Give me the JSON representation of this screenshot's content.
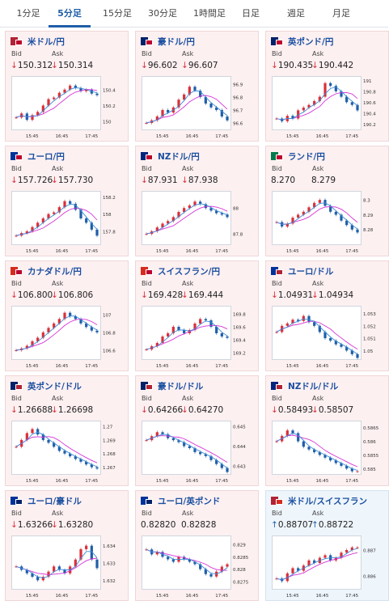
{
  "tabs": [
    {
      "label": "1分足"
    },
    {
      "label": "5分足",
      "active": true
    },
    {
      "label": "15分足"
    },
    {
      "label": "30分足"
    },
    {
      "label": "1時間足"
    },
    {
      "label": "日足"
    },
    {
      "label": "週足"
    },
    {
      "label": "月足"
    }
  ],
  "labels": {
    "bid": "Bid",
    "ask": "Ask"
  },
  "colors": {
    "up": "#d9303a",
    "down": "#1f5ea8",
    "ma_long": "#d633d6",
    "ma_short": "#3a8ad6",
    "link": "#1a4fa0"
  },
  "pairs": [
    {
      "name": "米ドル/円",
      "flag": "us-jp-flag",
      "dir": "down",
      "bid": "150.312",
      "ask": "150.314",
      "chart_data": {
        "type": "candlestick",
        "x_ticks": [
          "15:45",
          "16:45",
          "17:45"
        ],
        "y_ticks": [
          "150",
          "150.2",
          "150.4"
        ],
        "ylim": [
          149.9,
          150.55
        ],
        "series": [
          150.05,
          150.1,
          150.02,
          150.08,
          150.12,
          150.2,
          150.28,
          150.3,
          150.36,
          150.4,
          150.45,
          150.42,
          150.38,
          150.4,
          150.35,
          150.33
        ]
      }
    },
    {
      "name": "豪ドル/円",
      "flag": "au-jp-flag",
      "dir": "down",
      "bid": "96.602",
      "ask": "96.607",
      "chart_data": {
        "type": "candlestick",
        "x_ticks": [
          "15:45",
          "16:45",
          "17:45"
        ],
        "y_ticks": [
          "96.6",
          "96.7",
          "96.8",
          "96.9"
        ],
        "ylim": [
          96.55,
          96.95
        ],
        "series": [
          96.6,
          96.62,
          96.65,
          96.7,
          96.68,
          96.72,
          96.78,
          96.82,
          96.88,
          96.85,
          96.8,
          96.75,
          96.72,
          96.7,
          96.65,
          96.62
        ]
      }
    },
    {
      "name": "英ポンド/円",
      "flag": "gb-jp-flag",
      "dir": "down",
      "bid": "190.435",
      "ask": "190.442",
      "chart_data": {
        "type": "candlestick",
        "x_ticks": [
          "15:45",
          "16:45",
          "17:45"
        ],
        "y_ticks": [
          "190.2",
          "190.4",
          "190.6",
          "190.8",
          "191"
        ],
        "ylim": [
          190.1,
          191.05
        ],
        "series": [
          190.3,
          190.25,
          190.35,
          190.3,
          190.45,
          190.5,
          190.55,
          190.62,
          190.7,
          190.95,
          190.9,
          190.8,
          190.7,
          190.6,
          190.55,
          190.45
        ]
      }
    },
    {
      "name": "ユーロ/円",
      "flag": "eu-jp-flag",
      "dir": "down",
      "bid": "157.726",
      "ask": "157.730",
      "chart_data": {
        "type": "candlestick",
        "x_ticks": [
          "15:45",
          "16:45",
          "17:45"
        ],
        "y_ticks": [
          "157.8",
          "158",
          "158.2"
        ],
        "ylim": [
          157.65,
          158.25
        ],
        "series": [
          157.75,
          157.78,
          157.8,
          157.85,
          157.9,
          157.95,
          158.0,
          158.02,
          158.08,
          158.15,
          158.12,
          158.05,
          157.95,
          157.9,
          157.82,
          157.75
        ]
      }
    },
    {
      "name": "NZドル/円",
      "flag": "nz-jp-flag",
      "dir": "down",
      "bid": "87.931",
      "ask": "87.938",
      "chart_data": {
        "type": "candlestick",
        "x_ticks": [
          "15:45",
          "16:45",
          "17:45"
        ],
        "y_ticks": [
          "87.8",
          "88"
        ],
        "ylim": [
          87.72,
          88.12
        ],
        "series": [
          87.8,
          87.82,
          87.85,
          87.88,
          87.9,
          87.93,
          87.97,
          88.0,
          88.02,
          88.05,
          88.03,
          88.0,
          87.98,
          87.96,
          87.95,
          87.93
        ]
      }
    },
    {
      "name": "ランド/円",
      "flag": "za-jp-flag",
      "dir": "none",
      "bid": "8.270",
      "ask": "8.279",
      "chart_data": {
        "type": "candlestick",
        "x_ticks": [
          "15:45",
          "16:45",
          "17:45"
        ],
        "y_ticks": [
          "8.28",
          "8.29",
          "8.3"
        ],
        "ylim": [
          8.27,
          8.305
        ],
        "series": [
          8.285,
          8.282,
          8.284,
          8.288,
          8.29,
          8.292,
          8.295,
          8.298,
          8.3,
          8.296,
          8.292,
          8.29,
          8.286,
          8.283,
          8.28,
          8.278
        ]
      }
    },
    {
      "name": "カナダドル/円",
      "flag": "ca-jp-flag",
      "dir": "down",
      "bid": "106.800",
      "ask": "106.806",
      "chart_data": {
        "type": "candlestick",
        "x_ticks": [
          "15:45",
          "16:45",
          "17:45"
        ],
        "y_ticks": [
          "106.6",
          "106.8",
          "107"
        ],
        "ylim": [
          106.5,
          107.08
        ],
        "series": [
          106.6,
          106.62,
          106.65,
          106.7,
          106.74,
          106.8,
          106.85,
          106.9,
          106.95,
          107.02,
          106.98,
          106.95,
          106.9,
          106.86,
          106.82,
          106.8
        ]
      }
    },
    {
      "name": "スイスフラン/円",
      "flag": "ch-jp-flag",
      "dir": "down",
      "bid": "169.428",
      "ask": "169.444",
      "chart_data": {
        "type": "candlestick",
        "x_ticks": [
          "15:45",
          "16:45",
          "17:45"
        ],
        "y_ticks": [
          "169.2",
          "169.4",
          "169.6",
          "169.8"
        ],
        "ylim": [
          169.1,
          169.9
        ],
        "series": [
          169.25,
          169.3,
          169.35,
          169.45,
          169.5,
          169.6,
          169.55,
          169.5,
          169.55,
          169.65,
          169.72,
          169.7,
          169.6,
          169.5,
          169.45,
          169.43
        ]
      }
    },
    {
      "name": "ユーロ/ドル",
      "flag": "eu-us-flag",
      "dir": "down",
      "bid": "1.04931",
      "ask": "1.04934",
      "chart_data": {
        "type": "candlestick",
        "x_ticks": [
          "15:45",
          "16:45",
          "17:45"
        ],
        "y_ticks": [
          "1.05",
          "1.051",
          "1.052",
          "1.053"
        ],
        "ylim": [
          1.0493,
          1.0535
        ],
        "series": [
          1.0515,
          1.052,
          1.0522,
          1.0525,
          1.0524,
          1.0528,
          1.0523,
          1.052,
          1.0515,
          1.051,
          1.0508,
          1.0505,
          1.0503,
          1.05,
          1.0497,
          1.0494
        ]
      }
    },
    {
      "name": "英ポンド/ドル",
      "flag": "gb-us-flag",
      "dir": "down",
      "bid": "1.26688",
      "ask": "1.26698",
      "chart_data": {
        "type": "candlestick",
        "x_ticks": [
          "15:45",
          "16:45",
          "17:45"
        ],
        "y_ticks": [
          "1.267",
          "1.268",
          "1.269",
          "1.27"
        ],
        "ylim": [
          1.2665,
          1.2703
        ],
        "series": [
          1.2685,
          1.269,
          1.2695,
          1.2698,
          1.2694,
          1.269,
          1.2688,
          1.2685,
          1.2682,
          1.268,
          1.2678,
          1.2676,
          1.2674,
          1.2672,
          1.267,
          1.2669
        ]
      }
    },
    {
      "name": "豪ドル/ドル",
      "flag": "au-us-flag",
      "dir": "down",
      "bid": "0.64266",
      "ask": "0.64270",
      "chart_data": {
        "type": "candlestick",
        "x_ticks": [
          "15:45",
          "16:45",
          "17:45"
        ],
        "y_ticks": [
          "0.643",
          "0.644",
          "0.645"
        ],
        "ylim": [
          0.6426,
          0.6452
        ],
        "series": [
          0.6443,
          0.6445,
          0.6447,
          0.6446,
          0.6444,
          0.6443,
          0.6442,
          0.644,
          0.6439,
          0.6437,
          0.6436,
          0.6435,
          0.6433,
          0.6431,
          0.6429,
          0.6427
        ]
      }
    },
    {
      "name": "NZドル/ドル",
      "flag": "nz-us-flag",
      "dir": "down",
      "bid": "0.58493",
      "ask": "0.58507",
      "chart_data": {
        "type": "candlestick",
        "x_ticks": [
          "15:45",
          "16:45",
          "17:45"
        ],
        "y_ticks": [
          "0.585",
          "0.5855",
          "0.586",
          "0.5865"
        ],
        "ylim": [
          0.5848,
          0.5867
        ],
        "series": [
          0.586,
          0.5862,
          0.5864,
          0.5863,
          0.586,
          0.5858,
          0.5857,
          0.5856,
          0.5855,
          0.5854,
          0.5853,
          0.5852,
          0.5851,
          0.585,
          0.5849,
          0.5849
        ]
      }
    },
    {
      "name": "ユーロ/豪ドル",
      "flag": "eu-au-flag",
      "dir": "down",
      "bid": "1.63266",
      "ask": "1.63280",
      "chart_data": {
        "type": "candlestick",
        "x_ticks": [
          "15:45",
          "16:45",
          "17:45"
        ],
        "y_ticks": [
          "1.632",
          "1.633",
          "1.634"
        ],
        "ylim": [
          1.6315,
          1.6345
        ],
        "series": [
          1.6328,
          1.6326,
          1.6324,
          1.6322,
          1.632,
          1.6322,
          1.6325,
          1.6328,
          1.6326,
          1.6324,
          1.6328,
          1.6332,
          1.6338,
          1.634,
          1.6332,
          1.6327
        ]
      }
    },
    {
      "name": "ユーロ/英ポンド",
      "flag": "eu-gb-flag",
      "dir": "none",
      "bid": "0.82820",
      "ask": "0.82828",
      "chart_data": {
        "type": "candlestick",
        "x_ticks": [
          "15:45",
          "16:45",
          "17:45"
        ],
        "y_ticks": [
          "0.8275",
          "0.828",
          "0.8285",
          "0.829"
        ],
        "ylim": [
          0.8272,
          0.8293
        ],
        "series": [
          0.8288,
          0.8286,
          0.8287,
          0.8285,
          0.8284,
          0.8283,
          0.8285,
          0.8284,
          0.8283,
          0.8282,
          0.828,
          0.8278,
          0.8277,
          0.8279,
          0.8281,
          0.8282
        ]
      }
    },
    {
      "name": "米ドル/スイスフラン",
      "flag": "us-ch-flag",
      "dir": "up",
      "bid": "0.88707",
      "ask": "0.88722",
      "chart_data": {
        "type": "candlestick",
        "x_ticks": [
          "15:45",
          "16:45",
          "17:45"
        ],
        "y_ticks": [
          "0.886",
          "0.887"
        ],
        "ylim": [
          0.8855,
          0.8875
        ],
        "series": [
          0.8859,
          0.8858,
          0.8861,
          0.8863,
          0.8862,
          0.8864,
          0.8866,
          0.8865,
          0.8867,
          0.8868,
          0.8866,
          0.8867,
          0.8869,
          0.887,
          0.8871,
          0.8871
        ]
      }
    }
  ]
}
